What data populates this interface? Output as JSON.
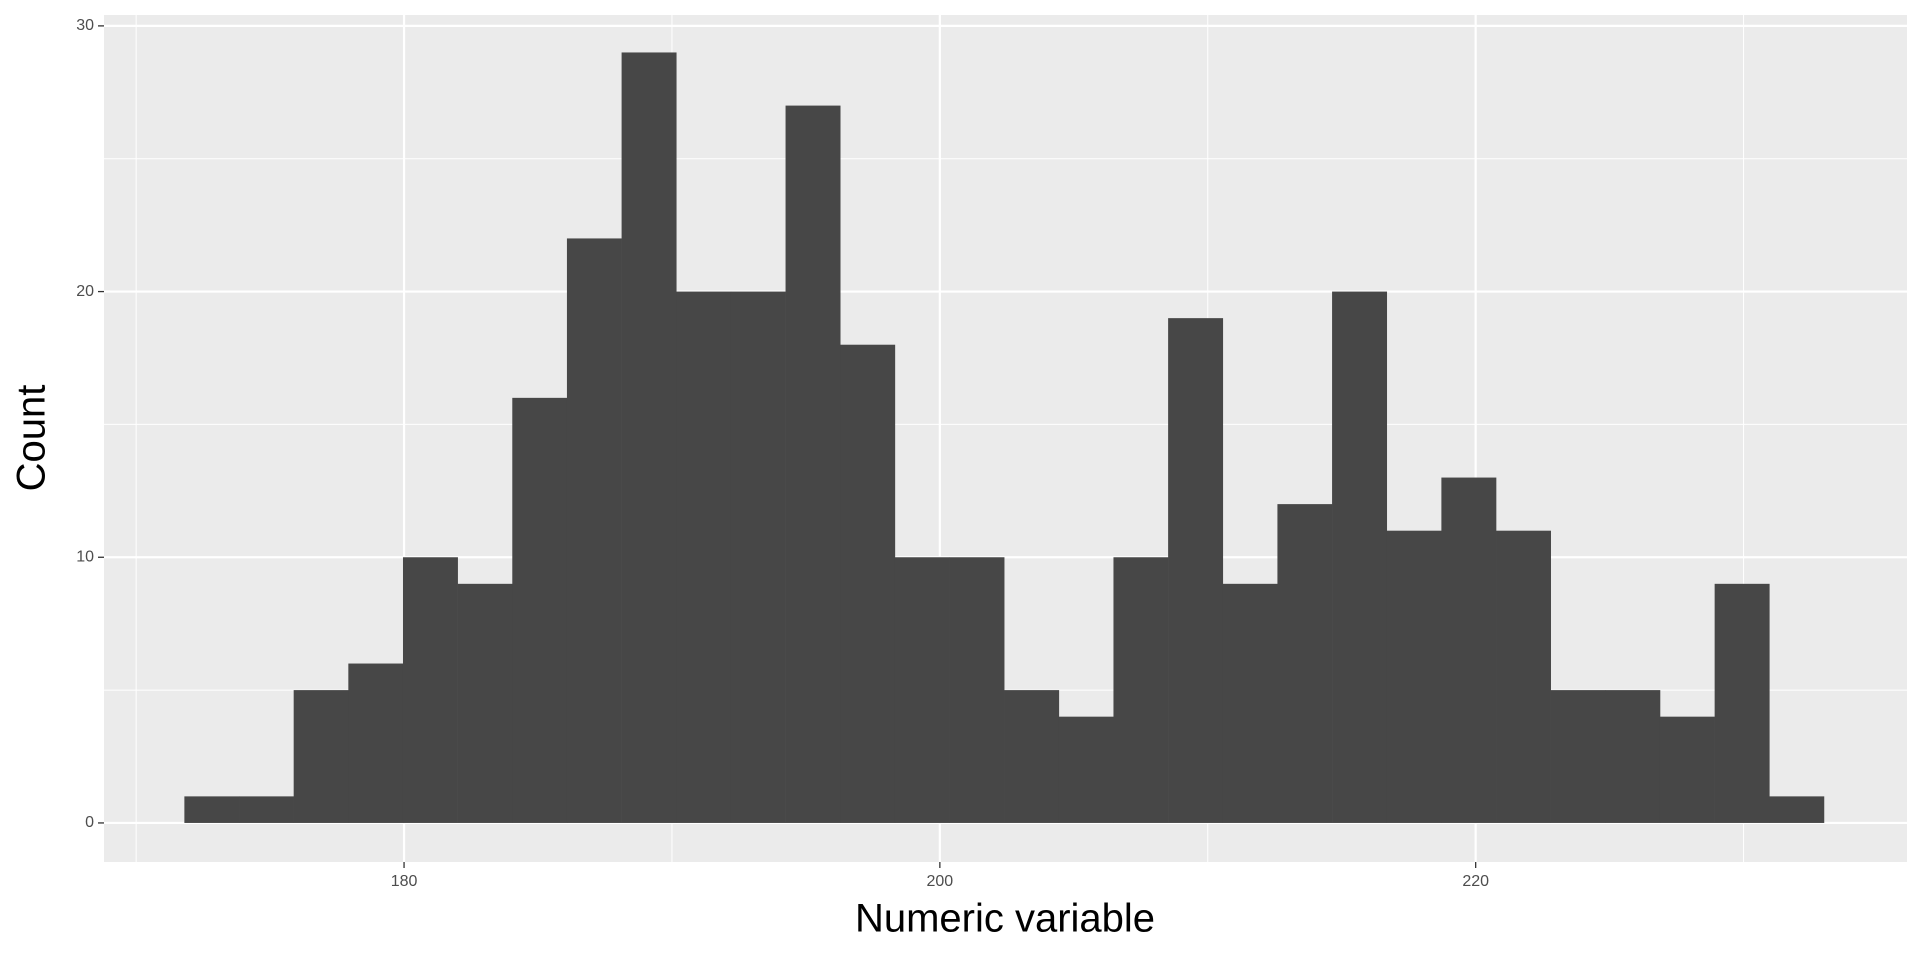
{
  "chart_data": {
    "type": "histogram",
    "x_label": "Numeric variable",
    "y_label": "Count",
    "bins": [
      171.8,
      173.84,
      175.88,
      177.92,
      179.96,
      182.0,
      184.04,
      186.08,
      188.12,
      190.16,
      192.2,
      194.24,
      196.28,
      198.32,
      200.36,
      202.4,
      204.44,
      206.48,
      208.52,
      210.56,
      212.6,
      214.64,
      216.68,
      218.72,
      220.76,
      222.8,
      224.84,
      226.88,
      228.92,
      230.96,
      233.0
    ],
    "values": [
      1,
      1,
      5,
      6,
      10,
      9,
      16,
      22,
      29,
      20,
      20,
      27,
      18,
      10,
      10,
      5,
      4,
      10,
      19,
      9,
      12,
      20,
      11,
      13,
      11,
      5,
      5,
      4,
      9,
      1
    ],
    "color": "#474747",
    "xlim": [
      168.8,
      236.1
    ],
    "ylim": [
      -1.47,
      30.41
    ],
    "xticks": [
      180,
      200,
      220
    ],
    "yticks": [
      0,
      10,
      20,
      30
    ],
    "xminor": [
      170,
      190,
      210,
      230
    ],
    "yminor": [
      5,
      15,
      25
    ],
    "grid": true
  }
}
